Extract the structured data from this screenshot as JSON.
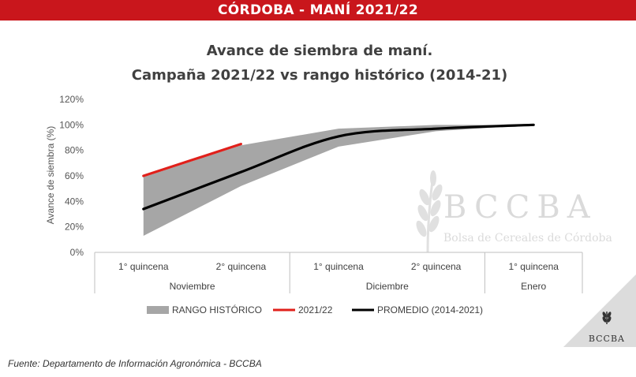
{
  "banner": {
    "title": "CÓRDOBA - MANÍ 2021/22"
  },
  "chart_data": {
    "type": "line",
    "title": "Avance de siembra de maní.",
    "subtitle": "Campaña 2021/22 vs rango histórico (2014-21)",
    "ylabel": "Avance de siembra (%)",
    "xlabel": "",
    "ylim": [
      0,
      120
    ],
    "yticks": [
      "0%",
      "20%",
      "40%",
      "60%",
      "80%",
      "100%",
      "120%"
    ],
    "categories": [
      "1° quincena",
      "2° quincena",
      "1° quincena",
      "2° quincena",
      "1° quincena"
    ],
    "groups": [
      {
        "label": "Noviembre",
        "span": 2
      },
      {
        "label": "Diciembre",
        "span": 2
      },
      {
        "label": "Enero",
        "span": 1
      }
    ],
    "series": [
      {
        "name": "RANGO HISTÓRICO",
        "kind": "range",
        "color": "#a6a6a6",
        "lower": [
          13,
          52,
          83,
          95,
          100
        ],
        "upper": [
          59,
          84,
          97,
          100,
          100
        ]
      },
      {
        "name": "2021/22",
        "kind": "line",
        "color": "#e0201b",
        "values": [
          60,
          85,
          null,
          null,
          null
        ]
      },
      {
        "name": "PROMEDIO (2014-2021)",
        "kind": "line",
        "color": "#000000",
        "values": [
          34,
          63,
          91,
          97,
          100
        ]
      }
    ],
    "legend_position": "bottom",
    "grid": false
  },
  "watermark": {
    "logo": "BCCBA",
    "subtitle": "Bolsa de Cereales de Córdoba"
  },
  "corner_logo": "BCCBA",
  "source": "Fuente: Departamento de Información Agronómica - BCCBA",
  "icons": {
    "watermark": "wheat-icon",
    "corner": "wheat-icon"
  }
}
